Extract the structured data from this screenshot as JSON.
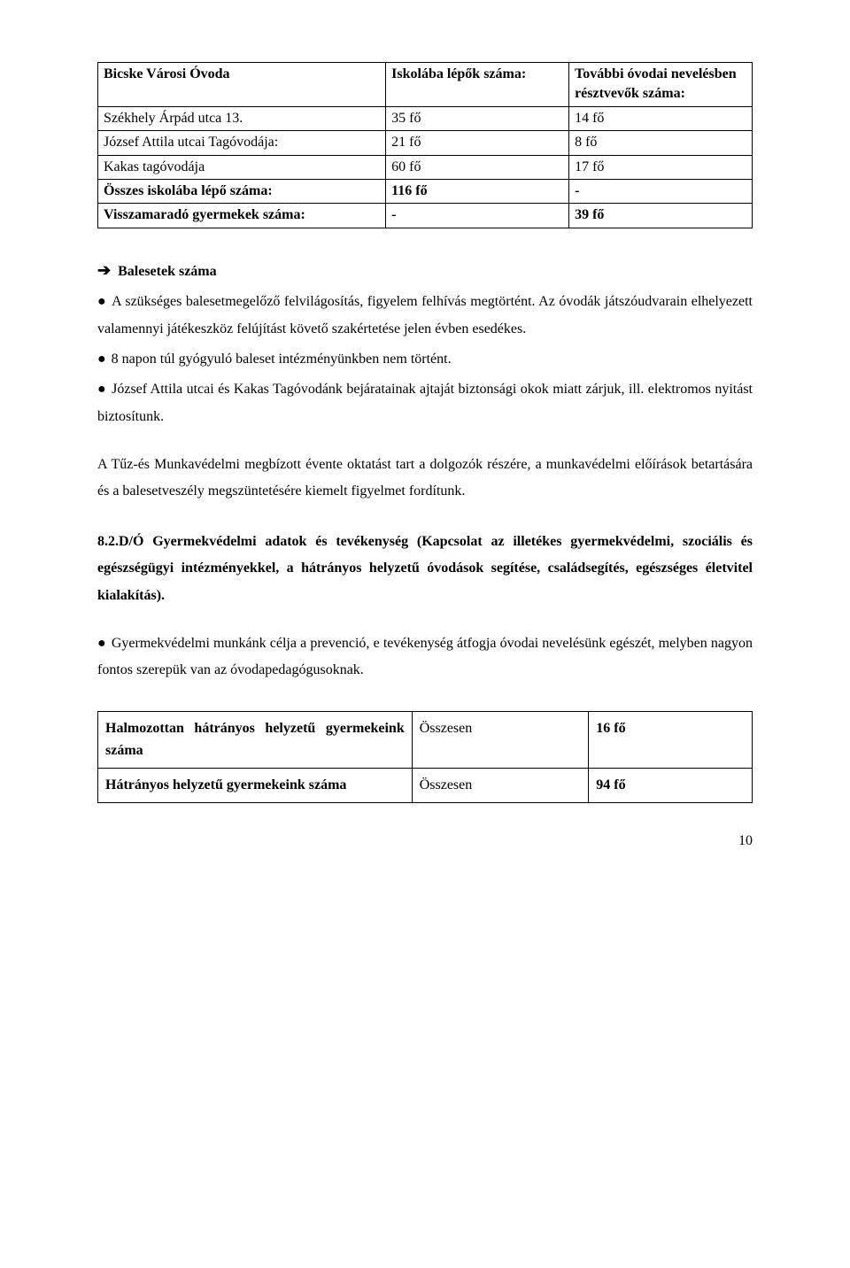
{
  "table1": {
    "columns": [
      "Bicske Városi Óvoda",
      "Iskolába lépők száma:",
      "További óvodai nevelésben résztvevők száma:"
    ],
    "rows": [
      [
        "Székhely Árpád utca 13.",
        "35 fő",
        "14 fő"
      ],
      [
        "József Attila utcai Tagóvodája:",
        "21 fő",
        "8 fő"
      ],
      [
        "Kakas tagóvodája",
        "60 fő",
        "17 fő"
      ],
      [
        "Összes iskolába lépő száma:",
        "116 fő",
        "-"
      ],
      [
        "Visszamaradó gyermekek száma:",
        "-",
        "39 fő"
      ]
    ]
  },
  "section1": {
    "arrow": "➔",
    "heading": "Balesetek száma",
    "bullet": "●",
    "b1a": "A szükséges balesetmegelőző felvilágosítás, figyelem felhívás megtörtént. Az óvodák játszóudvarain elhelyezett valamennyi játékeszköz felújítást követő szakértetése jelen évben esedékes.",
    "b2": "8 napon túl gyógyuló baleset intézményünkben nem történt.",
    "b3": "József Attila utcai és Kakas Tagóvodánk bejáratainak ajtaját biztonsági okok miatt zárjuk, ill. elektromos nyitást biztosítunk.",
    "p1": "A Tűz-és Munkavédelmi megbízott évente oktatást tart a dolgozók részére, a munkavédelmi előírások betartására és a balesetveszély megszüntetésére kiemelt figyelmet fordítunk."
  },
  "section2": {
    "title": "8.2.D/Ó Gyermekvédelmi adatok és tevékenység (Kapcsolat az illetékes gyermekvédelmi, szociális és egészségügyi intézményekkel, a hátrányos helyzetű óvodások segítése, családsegítés, egészséges életvitel kialakítás).",
    "bullet": "●",
    "b1": "Gyermekvédelmi munkánk célja a prevenció, e tevékenység átfogja óvodai nevelésünk egészét, melyben nagyon fontos szerepük van az óvodapedagógusoknak."
  },
  "table2": {
    "rows": [
      [
        "Halmozottan hátrányos helyzetű gyermekeink száma",
        "Összesen",
        "16 fő"
      ],
      [
        "Hátrányos helyzetű gyermekeink száma",
        "Összesen",
        "94 fő"
      ]
    ]
  },
  "pagenum": "10"
}
